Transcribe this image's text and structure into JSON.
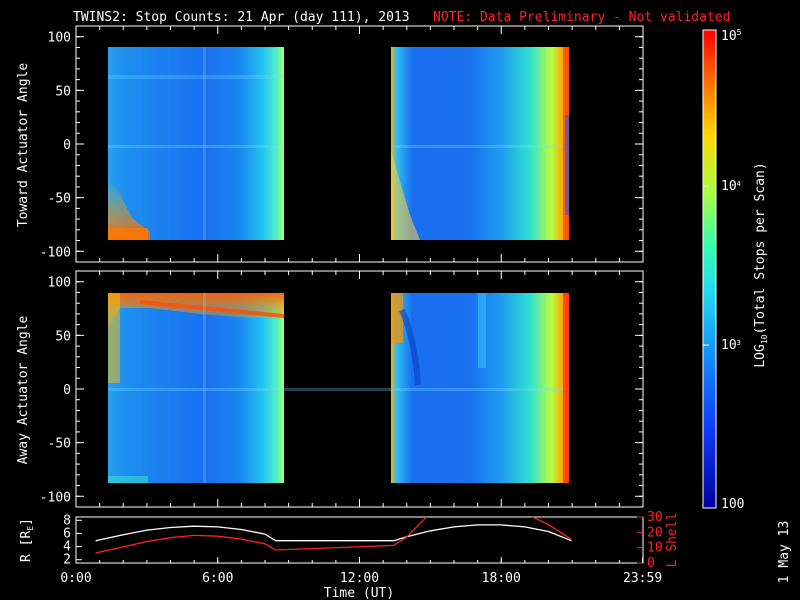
{
  "header": {
    "title": "TWINS2: Stop Counts: 21 Apr (day 111), 2013",
    "note": "NOTE: Data Preliminary - Not validated"
  },
  "colors": {
    "background": "#000000",
    "axes": "#ffffff",
    "note": "#ff2020",
    "r_line": "#ffffff",
    "lshell_line": "#ff2020"
  },
  "colorbar": {
    "label_prefix": "LOG",
    "label_sub": "10",
    "label_suffix": "(Total Stops per Scan)",
    "ticks": [
      {
        "base": "10",
        "exp": "5"
      },
      {
        "base": "10",
        "exp": "4"
      },
      {
        "base": "10",
        "exp": "3"
      },
      {
        "base": "100",
        "exp": ""
      }
    ],
    "range": [
      100,
      100000
    ],
    "scale": "log",
    "colormap": "rainbow"
  },
  "date_stamp": "1 May 13",
  "chart_data": [
    {
      "type": "heatmap",
      "ylabel": "Toward Actuator Angle",
      "yticks": [
        "100",
        "50",
        "0",
        "-50",
        "-100"
      ],
      "ylim": [
        -110,
        110
      ],
      "data_y_range": [
        -88,
        90
      ],
      "data_time_blocks_h": [
        [
          0.83,
          8.45
        ],
        [
          13.45,
          20.97
        ]
      ],
      "features": "high counts near -80 to -90 deg early in each block; broad enhancement rising toward end of each block"
    },
    {
      "type": "heatmap",
      "ylabel": "Away Actuator Angle",
      "yticks": [
        "100",
        "50",
        "0",
        "-50",
        "-100"
      ],
      "ylim": [
        -110,
        110
      ],
      "data_y_range": [
        -88,
        90
      ],
      "data_time_blocks_h": [
        [
          0.83,
          8.45
        ],
        [
          13.45,
          20.97
        ]
      ],
      "features": "band of high counts near 75-90 deg in first block; enhancement at end of each block"
    },
    {
      "type": "line",
      "xlabel": "Time (UT)",
      "xticks": [
        "0:00",
        "6:00",
        "12:00",
        "18:00",
        "23:59"
      ],
      "xlim": [
        0,
        24
      ],
      "ylabel_left_main": "R [R",
      "ylabel_left_sub": "E",
      "ylabel_left_end": "]",
      "yticks_left": [
        "2",
        "4",
        "6",
        "8"
      ],
      "ylim_left": [
        1.5,
        8.5
      ],
      "ylabel_right": "L Shell",
      "yticks_right": [
        "0",
        "10",
        "20",
        "30"
      ],
      "ylim_right": [
        0,
        30
      ],
      "series": [
        {
          "axis": "left",
          "x": [
            0.83,
            2.0,
            3.0,
            4.0,
            5.0,
            6.0,
            7.0,
            8.0,
            8.45,
            13.45,
            14.0,
            15.0,
            16.0,
            17.0,
            18.0,
            19.0,
            20.0,
            20.97
          ],
          "y": [
            4.9,
            5.8,
            6.5,
            6.9,
            7.1,
            7.0,
            6.6,
            5.9,
            4.9,
            4.9,
            5.5,
            6.4,
            7.0,
            7.3,
            7.3,
            7.0,
            6.3,
            4.9
          ]
        },
        {
          "axis": "right",
          "x": [
            0.83,
            2.0,
            3.0,
            4.0,
            5.0,
            6.0,
            7.0,
            8.0,
            8.45,
            13.45,
            14.0,
            14.9,
            19.2,
            20.0,
            20.97
          ],
          "y": [
            6.5,
            10.5,
            14,
            16.5,
            18,
            17.5,
            15.5,
            12.5,
            8.5,
            11.5,
            17,
            31,
            31,
            25,
            15.5
          ]
        }
      ]
    }
  ]
}
